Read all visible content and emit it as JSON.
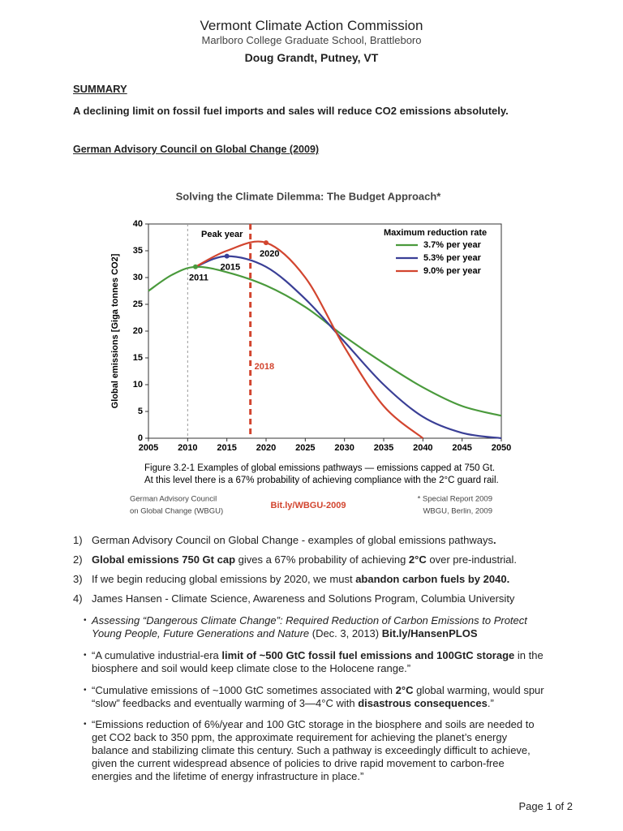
{
  "header": {
    "title": "Vermont Climate Action Commission",
    "subtitle": "Marlboro College Graduate School, Brattleboro",
    "author": "Doug Grandt, Putney, VT"
  },
  "summary": {
    "heading": "SUMMARY",
    "text": "A declining limit on fossil fuel imports and sales will reduce CO2 emissions absolutely."
  },
  "section_heading": "German Advisory Council on Global Change (2009)",
  "chart_data": {
    "type": "line",
    "title": "Solving the Climate Dilemma: The Budget Approach*",
    "y_label": "Global emissions [Giga tonnes CO2]",
    "x": [
      2005,
      2008,
      2011,
      2015,
      2020,
      2025,
      2030,
      2035,
      2040,
      2045,
      2050
    ],
    "xlim": [
      2005,
      2050
    ],
    "xticks": [
      2005,
      2010,
      2015,
      2020,
      2025,
      2030,
      2035,
      2040,
      2045,
      2050
    ],
    "ylim": [
      0,
      40
    ],
    "yticks": [
      0,
      5,
      10,
      15,
      20,
      25,
      30,
      35,
      40
    ],
    "legend_title": "Maximum reduction rate",
    "legend_position": "upper right",
    "series": [
      {
        "name": "3.7% per year",
        "color": "#4a9a3c",
        "values": [
          27.5,
          30.5,
          32,
          31,
          28.5,
          24.5,
          19,
          14,
          9.5,
          6,
          4.2
        ]
      },
      {
        "name": "5.3% per year",
        "color": "#3a3f96",
        "values": [
          null,
          null,
          32,
          34,
          32,
          26,
          18,
          10,
          4,
          1,
          0
        ]
      },
      {
        "name": "9.0% per year",
        "color": "#d2452f",
        "values": [
          null,
          null,
          32,
          35,
          36.5,
          30,
          17,
          6,
          0,
          null,
          null
        ]
      }
    ],
    "annotation": "Peak year",
    "peaks": [
      {
        "label": "2011",
        "x": 2011,
        "y": 32,
        "color": "#4a9a3c"
      },
      {
        "label": "2015",
        "x": 2015,
        "y": 34,
        "color": "#3a3f96"
      },
      {
        "label": "2020",
        "x": 2020,
        "y": 36.5,
        "color": "#d2452f"
      }
    ],
    "vlines": [
      {
        "x": 2010,
        "color": "#999999"
      },
      {
        "x": 2018,
        "color": "#d2452f",
        "label": "2018"
      }
    ],
    "caption": [
      "Figure 3.2-1 Examples of global emissions pathways — emissions capped at 750 Gt.",
      "At this level there is a 67% probability of achieving compliance with the 2°C guard rail."
    ],
    "source_left": [
      "German Advisory Council",
      "on Global Change (WBGU)"
    ],
    "source_link": "Bit.ly/WBGU-2009",
    "source_right": [
      "* Special Report 2009",
      "WBGU, Berlin, 2009"
    ]
  },
  "items": [
    {
      "number": "1)",
      "segments": [
        {
          "text": "German Advisory Council on Global Change - examples of global emissions pathways"
        },
        {
          "text": ".",
          "style": "bold"
        }
      ]
    },
    {
      "number": "2)",
      "segments": [
        {
          "text": "Global emissions 750 Gt cap",
          "style": "bold"
        },
        {
          "text": " gives a 67% probability of achieving "
        },
        {
          "text": "2°C",
          "style": "bold"
        },
        {
          "text": " over pre-industrial."
        }
      ]
    },
    {
      "number": "3)",
      "segments": [
        {
          "text": "If we begin reducing global emissions by 2020, we must "
        },
        {
          "text": "abandon carbon fuels by 2040.",
          "style": "bold"
        }
      ]
    },
    {
      "number": "4)",
      "segments": [
        {
          "text": "James Hansen - Climate Science, Awareness and Solutions Program, Columbia University"
        }
      ]
    }
  ],
  "bullets": [
    {
      "segments": [
        {
          "text": "Assessing “Dangerous Climate Change”: Required Reduction of Carbon Emissions to Protect Young People, Future Generations and Nature",
          "style": "italic"
        },
        {
          "text": " (Dec. 3, 2013) "
        },
        {
          "text": "Bit.ly/HansenPLOS",
          "style": "bold"
        }
      ]
    },
    {
      "segments": [
        {
          "text": "“A cumulative industrial-era "
        },
        {
          "text": "limit of ~500 GtC fossil fuel emissions and 100GtC storage",
          "style": "bold"
        },
        {
          "text": " in the biosphere and soil would keep climate close to the Holocene range.”"
        }
      ]
    },
    {
      "segments": [
        {
          "text": "“Cumulative emissions of ~1000 GtC sometimes associated with "
        },
        {
          "text": "2°C",
          "style": "bold"
        },
        {
          "text": " global warming, would spur “slow” feedbacks and eventually warming of 3—4°C with "
        },
        {
          "text": "disastrous consequences",
          "style": "bold"
        },
        {
          "text": ".”"
        }
      ]
    },
    {
      "segments": [
        {
          "text": "“Emissions reduction of 6%/year and 100 GtC storage in the biosphere and soils are needed to get CO2 back to 350 ppm, the approximate requirement for achieving the planet’s energy balance and stabilizing climate this century. Such a pathway is exceedingly difficult to achieve, given the current widespread absence of policies to drive rapid movement to carbon-free energies and the lifetime of energy infrastructure in place.”"
        }
      ]
    }
  ],
  "footer": "Page 1 of 2"
}
